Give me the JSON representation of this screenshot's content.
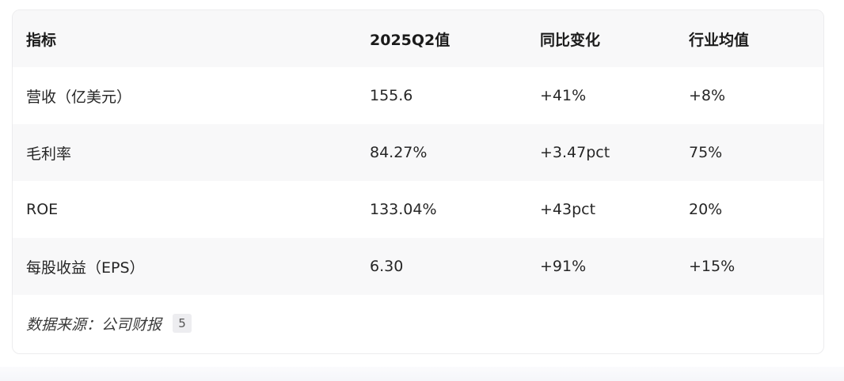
{
  "table": {
    "headers": [
      "指标",
      "2025Q2值",
      "同比变化",
      "行业均值"
    ],
    "rows": [
      [
        "营收（亿美元）",
        "155.6",
        "+41%",
        "+8%"
      ],
      [
        "毛利率",
        "84.27%",
        "+3.47pct",
        "75%"
      ],
      [
        "ROE",
        "133.04%",
        "+43pct",
        "20%"
      ],
      [
        "每股收益（EPS）",
        "6.30",
        "+91%",
        "+15%"
      ]
    ]
  },
  "source": {
    "label": "数据来源：公司财报",
    "citation": "5"
  }
}
